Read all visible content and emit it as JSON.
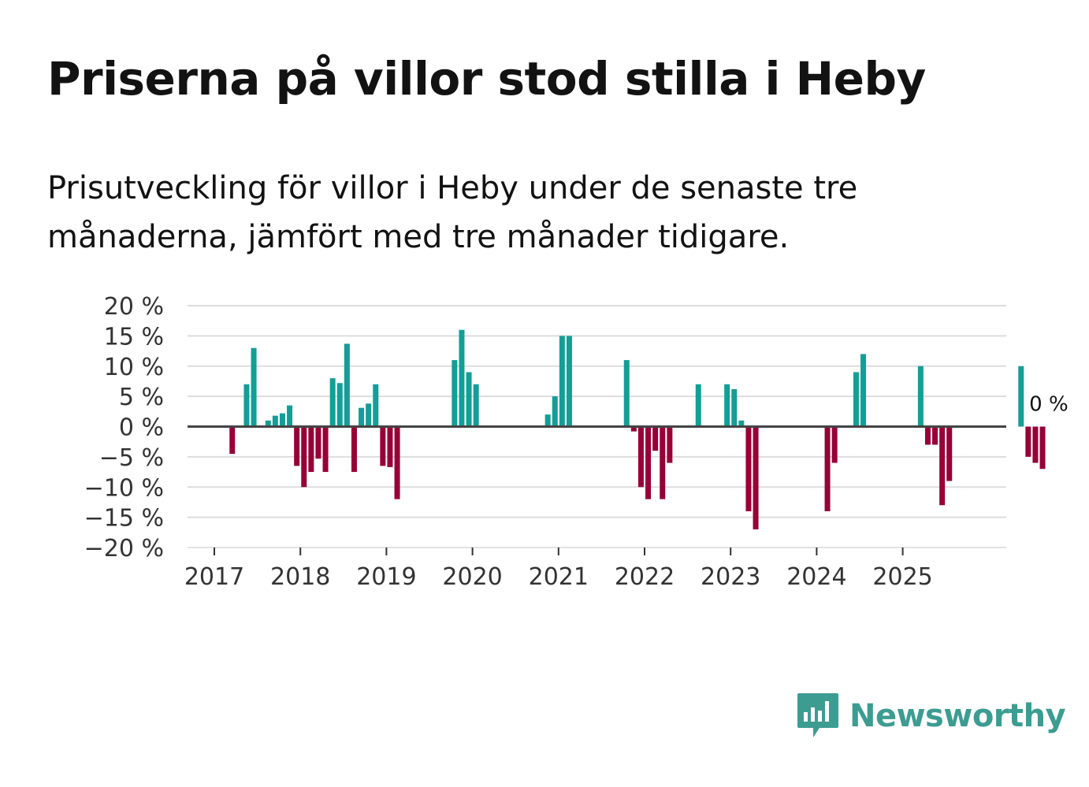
{
  "header": {
    "title": "Priserna på villor stod stilla i Heby",
    "subtitle": "Prisutveckling för villor i Heby under de senaste tre månaderna, jämfört med tre månader tidigare."
  },
  "colors": {
    "positive": "#139e96",
    "negative": "#960036",
    "grid": "#dddddd",
    "zero_line": "#444444"
  },
  "brand": {
    "name": "Newsworthy",
    "icon": "newsworthy-logo-icon",
    "color": "#3d9c91"
  },
  "chart_data": {
    "type": "bar",
    "title": "Priserna på villor stod stilla i Heby",
    "xlabel": "",
    "ylabel": "",
    "ylim": [
      -20,
      20
    ],
    "yticks": [
      20,
      15,
      10,
      5,
      0,
      -5,
      -10,
      -15,
      -20
    ],
    "ytick_labels": [
      "20 %",
      "15 %",
      "10 %",
      "5 %",
      "0 %",
      "−5 %",
      "−10 %",
      "−15 %",
      "−20 %"
    ],
    "xticks": [
      "2017",
      "2018",
      "2019",
      "2020",
      "2021",
      "2022",
      "2023",
      "2024",
      "2025"
    ],
    "start": {
      "year": 2017,
      "month": 1
    },
    "series": [
      {
        "name": "Prisutveckling",
        "values": [
          null,
          -4.5,
          null,
          7,
          13,
          null,
          1,
          1.8,
          2.2,
          3.5,
          -6.5,
          -10,
          -7.5,
          -5.3,
          -7.5,
          8,
          7.2,
          13.7,
          -7.5,
          3.1,
          3.8,
          7,
          -6.5,
          -6.7,
          -12,
          null,
          null,
          null,
          null,
          null,
          null,
          null,
          11,
          16,
          9,
          7,
          null,
          null,
          null,
          null,
          null,
          null,
          null,
          null,
          null,
          2,
          5,
          15,
          15,
          null,
          null,
          null,
          null,
          null,
          null,
          null,
          11,
          -0.8,
          -10,
          -12,
          -4,
          -12,
          -6,
          null,
          null,
          null,
          7,
          null,
          null,
          null,
          7,
          6.2,
          1,
          -14,
          -17,
          null,
          null,
          null,
          null,
          null,
          null,
          null,
          null,
          null,
          -14,
          -6,
          null,
          null,
          9,
          12,
          null,
          null,
          null,
          null,
          null,
          null,
          null,
          10,
          -3,
          -3,
          -13,
          -9,
          null,
          null,
          null,
          null,
          null,
          null,
          null,
          null,
          null,
          10,
          -5,
          -6,
          -7,
          0
        ]
      }
    ],
    "last_value_label": "0 %"
  }
}
